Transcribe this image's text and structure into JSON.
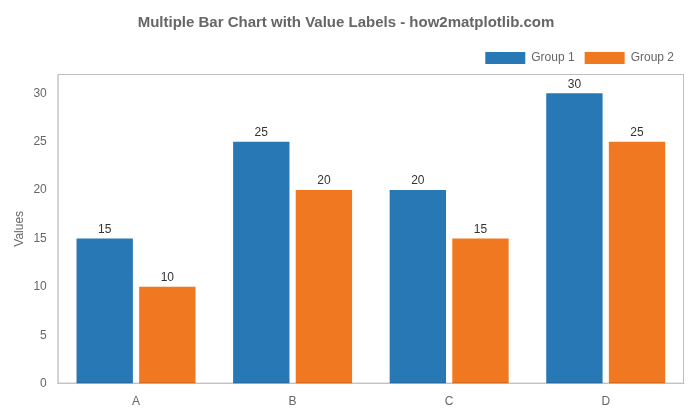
{
  "chart_data": {
    "type": "bar",
    "title": "Multiple Bar Chart with Value Labels - how2matplotlib.com",
    "categories": [
      "A",
      "B",
      "C",
      "D"
    ],
    "series": [
      {
        "name": "Group 1",
        "color": "#2878b5",
        "values": [
          15,
          25,
          20,
          30
        ]
      },
      {
        "name": "Group 2",
        "color": "#f07820",
        "values": [
          10,
          20,
          15,
          25
        ]
      }
    ],
    "ylabel": "Values",
    "ylim": [
      0,
      32
    ],
    "yticks": [
      0,
      5,
      10,
      15,
      20,
      25,
      30
    ],
    "data_labels": true,
    "legend": "upper right",
    "grid": false
  }
}
